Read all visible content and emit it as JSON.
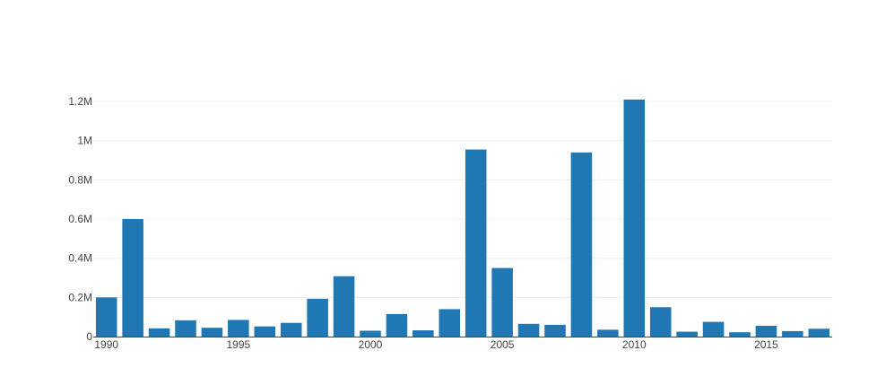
{
  "chart_data": {
    "type": "bar",
    "x": [
      1990,
      1991,
      1992,
      1993,
      1994,
      1995,
      1996,
      1997,
      1998,
      1999,
      2000,
      2001,
      2002,
      2003,
      2004,
      2005,
      2006,
      2007,
      2008,
      2009,
      2010,
      2011,
      2012,
      2013,
      2014,
      2015,
      2016,
      2017
    ],
    "values": [
      200000,
      600000,
      42000,
      83000,
      45000,
      85000,
      52000,
      70000,
      193000,
      308000,
      30000,
      115000,
      32000,
      140000,
      955000,
      350000,
      65000,
      60000,
      940000,
      35000,
      1210000,
      150000,
      25000,
      75000,
      22000,
      55000,
      28000,
      40000
    ],
    "ylim": [
      0,
      1260000
    ],
    "xlim": [
      1989.5,
      2017.5
    ],
    "yticks": [
      0,
      200000,
      400000,
      600000,
      800000,
      1000000,
      1200000
    ],
    "ytick_labels": [
      "0",
      "0.2M",
      "0.4M",
      "0.6M",
      "0.8M",
      "1M",
      "1.2M"
    ],
    "xticks": [
      1990,
      1995,
      2000,
      2005,
      2010,
      2015
    ],
    "xtick_labels": [
      "1990",
      "1995",
      "2000",
      "2005",
      "2010",
      "2015"
    ],
    "grid": true,
    "bar_color": "#1f77b4"
  }
}
